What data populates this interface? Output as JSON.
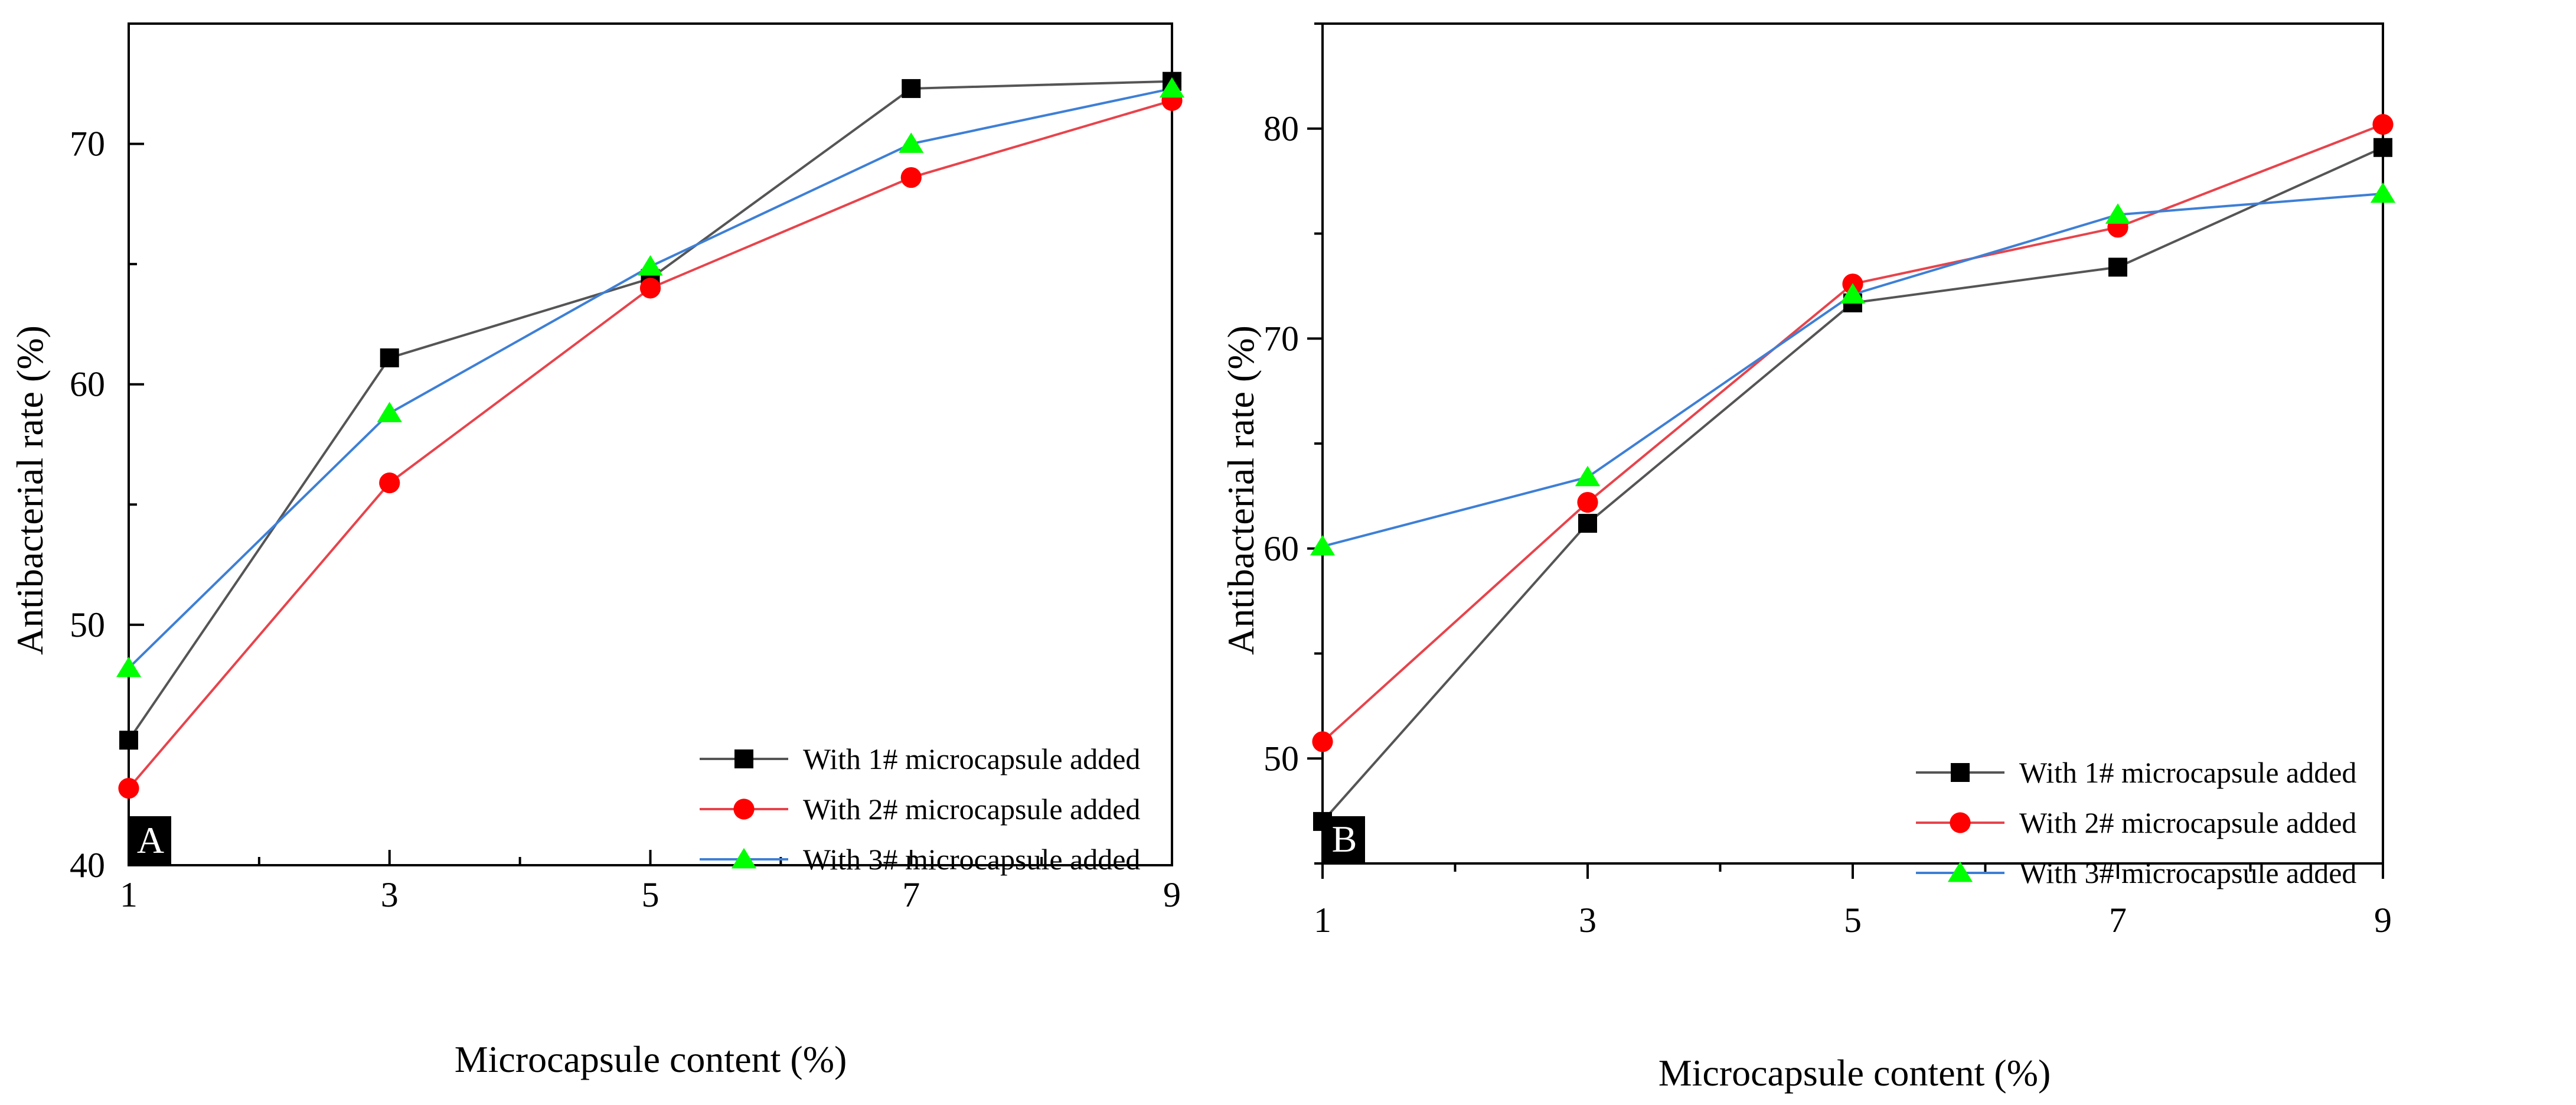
{
  "chart_data": [
    {
      "type": "line",
      "panel_label": "A",
      "title": "",
      "xlabel": "Microcapsule content (%)",
      "ylabel": "Antibacterial rate (%)",
      "x": [
        1,
        3,
        5,
        7,
        9
      ],
      "xlim": [
        1,
        9
      ],
      "ylim": [
        40,
        75
      ],
      "xticks": [
        1,
        3,
        5,
        7,
        9
      ],
      "yticks": [
        40,
        50,
        60,
        70
      ],
      "grid": false,
      "legend_position": "bottom-right",
      "series": [
        {
          "name": "With 1# microcapsule added",
          "marker": "square",
          "color": "#000000",
          "line_color": "#555555",
          "values": [
            45.2,
            61.1,
            64.4,
            72.3,
            72.6
          ]
        },
        {
          "name": "With 2# microcapsule added",
          "marker": "circle",
          "color": "#ff0000",
          "line_color": "#e8434b",
          "values": [
            43.2,
            55.9,
            64.0,
            68.6,
            71.8
          ]
        },
        {
          "name": "With 3# microcapsule added",
          "marker": "triangle",
          "color": "#00ff00",
          "line_color": "#3d7fd6",
          "values": [
            48.2,
            58.8,
            64.9,
            70.0,
            72.3
          ]
        }
      ]
    },
    {
      "type": "line",
      "panel_label": "B",
      "title": "",
      "xlabel": "Microcapsule content (%)",
      "ylabel": "Antibacterial rate (%)",
      "x": [
        1,
        3,
        5,
        7,
        9
      ],
      "xlim": [
        1,
        9
      ],
      "ylim": [
        45,
        85
      ],
      "xticks": [
        1,
        3,
        5,
        7,
        9
      ],
      "yticks": [
        50,
        60,
        70,
        80
      ],
      "grid": false,
      "legend_position": "bottom-right",
      "series": [
        {
          "name": "With 1# microcapsule added",
          "marker": "square",
          "color": "#000000",
          "line_color": "#555555",
          "values": [
            47.0,
            61.2,
            71.7,
            73.4,
            79.1
          ]
        },
        {
          "name": "With 2# microcapsule added",
          "marker": "circle",
          "color": "#ff0000",
          "line_color": "#e8434b",
          "values": [
            50.8,
            62.2,
            72.6,
            75.3,
            80.2
          ]
        },
        {
          "name": "With 3# microcapsule added",
          "marker": "triangle",
          "color": "#00ff00",
          "line_color": "#3d7fd6",
          "values": [
            60.1,
            63.4,
            72.1,
            75.9,
            76.9
          ]
        }
      ]
    }
  ]
}
